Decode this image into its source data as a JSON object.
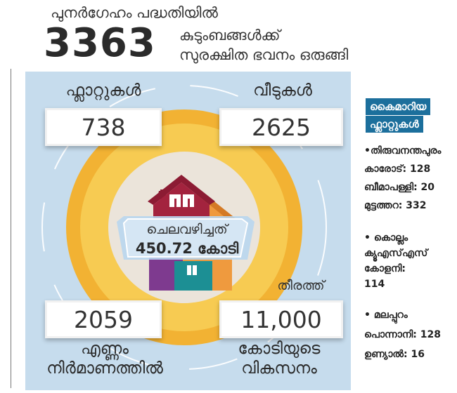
{
  "header": {
    "line1": "പുനർഗേഹം പദ്ധതിയിൽ",
    "number": "3363",
    "line2": "കുടുംബങ്ങൾക്ക്",
    "line3": "സുരക്ഷിത ഭവനം ഒരുങ്ങി"
  },
  "stats": {
    "flats": {
      "label": "ഫ്ലാറ്റുകൾ",
      "value": "738"
    },
    "houses": {
      "label": "വീടുകൾ",
      "value": "2625"
    },
    "construction": {
      "value": "2059",
      "label_line1": "എണ്ണം",
      "label_line2": "നിർമാണത്തിൽ"
    },
    "coastal": {
      "prefix": "തീരത്ത്",
      "value": "11,000",
      "label_line1": "കോടിയുടെ",
      "label_line2": "വികസനം"
    }
  },
  "center": {
    "label": "ചെലവഴിച്ചത്",
    "value": "450.72 കോടി"
  },
  "sidebar": {
    "title_line1": "കൈമാറിയ",
    "title_line2": "ഫ്ലാറ്റുകൾ",
    "groups": [
      {
        "district": "•തിരുവനന്തപുരം",
        "items": [
          "കാരോട്: 128",
          "ബീമാപള്ളി: 20",
          "മുട്ടത്തറ: 332"
        ]
      },
      {
        "district": "• കൊല്ലം",
        "items": [
          "ക്യൂഎസ്എസ്",
          "കോളനി:",
          "114"
        ]
      },
      {
        "district": "• മലപ്പുറം",
        "items": [
          "പൊന്നാനി: 128",
          "ഉണ്യാൽ: 16"
        ]
      }
    ]
  },
  "colors": {
    "panel_bg": "#c6dced",
    "ring_outer": "#f2b233",
    "ring_inner": "#f7cb52",
    "house_red": "#a3233e",
    "house_orange": "#ef9a3e",
    "house_teal": "#1c8f94",
    "house_purple": "#7e3a8f",
    "sidebar_title_bg": "#1c6f9c"
  }
}
